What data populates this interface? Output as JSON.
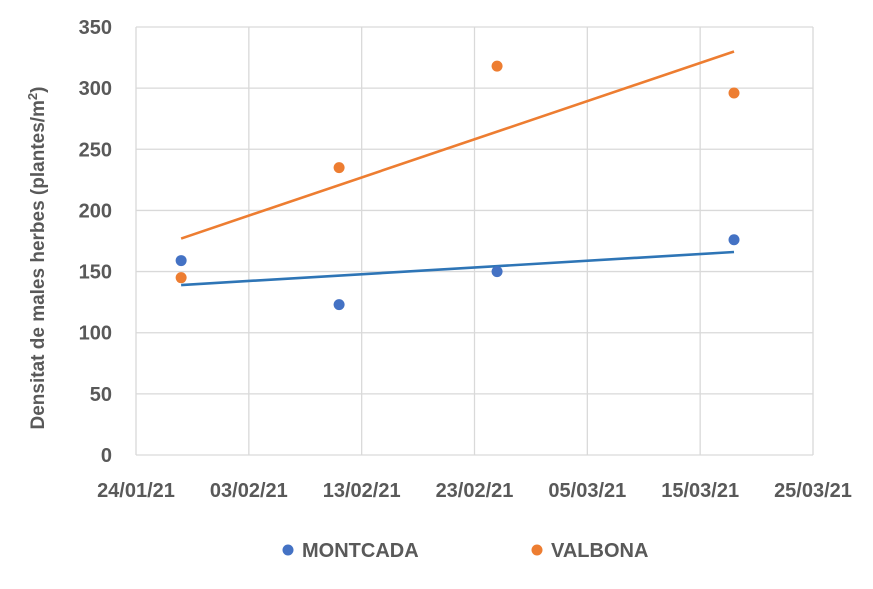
{
  "chart_data": {
    "type": "scatter",
    "ylabel_main": "Densitat de males herbes (plantes/m",
    "ylabel_sup": "2",
    "ylabel_end": ")",
    "xlabel": "",
    "ylim": [
      0,
      350
    ],
    "yticks": [
      0,
      50,
      100,
      150,
      200,
      250,
      300,
      350
    ],
    "xlim": [
      "2021-01-24",
      "2021-03-25"
    ],
    "xticks": [
      "2021-01-24",
      "2021-02-03",
      "2021-02-13",
      "2021-02-23",
      "2021-03-05",
      "2021-03-15",
      "2021-03-25"
    ],
    "xtick_labels": [
      "24/01/21",
      "03/02/21",
      "13/02/21",
      "23/02/21",
      "05/03/21",
      "15/03/21",
      "25/03/21"
    ],
    "grid": true,
    "legend_position": "bottom",
    "series": [
      {
        "name": "MONTCADA",
        "color": "#4472C4",
        "trend_color": "#2E75B6",
        "x": [
          "2021-01-28",
          "2021-02-11",
          "2021-02-25",
          "2021-03-18"
        ],
        "y": [
          159,
          123,
          150,
          176
        ],
        "trendline": [
          [
            "2021-01-28",
            139
          ],
          [
            "2021-03-18",
            166
          ]
        ]
      },
      {
        "name": "VALBONA",
        "color": "#ED7D31",
        "trend_color": "#ED7D31",
        "x": [
          "2021-01-28",
          "2021-02-11",
          "2021-02-25",
          "2021-03-18"
        ],
        "y": [
          145,
          235,
          318,
          296
        ],
        "trendline": [
          [
            "2021-01-28",
            177
          ],
          [
            "2021-03-18",
            330
          ]
        ]
      }
    ]
  }
}
